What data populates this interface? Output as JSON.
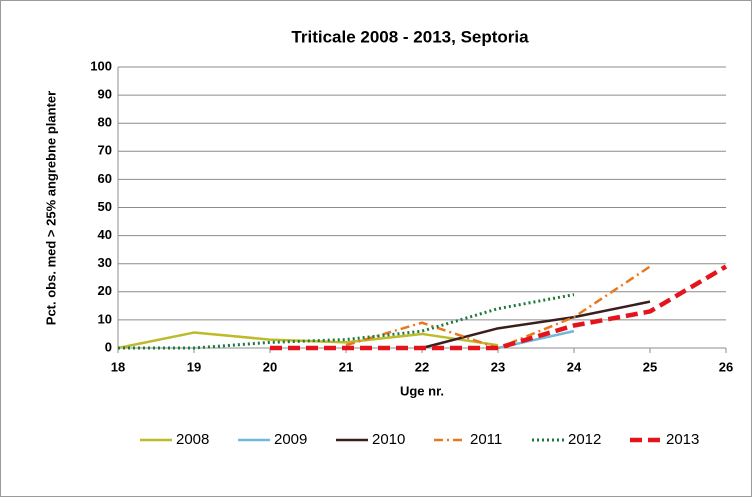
{
  "chart_data": {
    "type": "line",
    "title": "Triticale 2008 - 2013, Septoria",
    "x_label": "Uge nr.",
    "y_label": "Pct. obs. med > 25% angrebne planter",
    "x": [
      18,
      19,
      20,
      21,
      22,
      23,
      24,
      25,
      26
    ],
    "xlim": [
      18,
      26
    ],
    "xticks": [
      18,
      19,
      20,
      21,
      22,
      23,
      24,
      25,
      26
    ],
    "ylim": [
      0,
      100
    ],
    "yticks": [
      0,
      10,
      20,
      30,
      40,
      50,
      60,
      70,
      80,
      90,
      100
    ],
    "grid": true,
    "legend": "bottom",
    "series": [
      {
        "name": "2008",
        "color": "#bdbb2c",
        "style": "solid",
        "values": [
          0,
          5.5,
          3,
          2,
          5,
          1,
          null,
          null,
          null
        ]
      },
      {
        "name": "2009",
        "color": "#72b8dc",
        "style": "solid",
        "values": [
          null,
          null,
          null,
          null,
          null,
          0,
          6,
          null,
          null
        ]
      },
      {
        "name": "2010",
        "color": "#3a1e1e",
        "style": "solid",
        "values": [
          null,
          null,
          null,
          null,
          0,
          7,
          11,
          16.5,
          null
        ]
      },
      {
        "name": "2011",
        "color": "#e8781e",
        "style": "dashdot",
        "values": [
          null,
          null,
          null,
          1,
          9,
          0,
          11,
          29,
          null
        ]
      },
      {
        "name": "2012",
        "color": "#1d7a3a",
        "style": "dotted",
        "values": [
          0,
          0,
          2,
          3,
          6,
          14,
          19,
          null,
          null
        ]
      },
      {
        "name": "2013",
        "color": "#e3141c",
        "style": "dashed",
        "values": [
          null,
          null,
          0,
          0,
          0,
          0,
          8,
          13,
          29
        ]
      }
    ]
  }
}
